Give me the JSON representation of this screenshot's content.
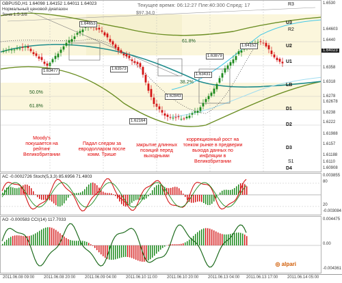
{
  "header": {
    "symbol_line": "GBPUSD,H1  1.64098 1.64152 1.64011 1.64023",
    "legend1": "Нормальный ценовой диапазон",
    "legend2": "Зона 1.5-3/8",
    "top_text": "Текущее время: 06:12:27  Пле:40:300  Спред: 17",
    "price_tag": "$97.34.0"
  },
  "price_axis": [
    "1.6530",
    "1.64603",
    "1.6440",
    "1.64023",
    "1.6358",
    "1.6318",
    "1.6278",
    "1.62678",
    "1.6238",
    "1.6222",
    "1.61988",
    "1.6157",
    "1.61188",
    "1.6110",
    "1.60908"
  ],
  "level_marks": [
    "R3",
    "U3",
    "R2",
    "U2",
    "U1",
    "LB",
    "D1",
    "D2",
    "D3",
    "S1",
    "D4"
  ],
  "fib_marks": [
    "61.8%",
    "38.2%",
    "50.0%",
    "61.8%"
  ],
  "price_boxes": [
    "1.64653",
    "1.63477",
    "1.63573",
    "1.64152",
    "1.63879",
    "1.63431",
    "1.62843",
    "1.62164"
  ],
  "annotations": [
    "Moody's покушается на рейтинг Великобритании",
    "Падал следом за евродолларом после комм. Трише",
    "закрытие длинных позиций перед выходными",
    "коррекционный рост на тонком рынке в предверии выхода данных по инфляции в Великобритании"
  ],
  "stoch": {
    "head": "AC -0.0002726  Stoch(5,3,3) 85.6956 71.4803",
    "axis": [
      "0.003855",
      "80",
      "20",
      "-0.003084"
    ]
  },
  "ao": {
    "head": "AO -0.000583  CCI(14) 117.7033",
    "axis": [
      "0.004475",
      "0.00",
      "-0.004361"
    ]
  },
  "time_axis": [
    "2011.06.08 09:00",
    "2011.06.08 20:00",
    "2011.06.09 04:00",
    "2011.06.10 11:00",
    "2011.06.10 20:00",
    "2011.06.13 04:00",
    "2011.06.13 17:00",
    "2011.06.14 05:00"
  ],
  "logo": "alpari",
  "colors": {
    "bull": "#1d8a1d",
    "bear": "#d41414",
    "teal": "#1e8c8c",
    "olive": "#6b8e23",
    "cyan": "#40c8e8"
  }
}
